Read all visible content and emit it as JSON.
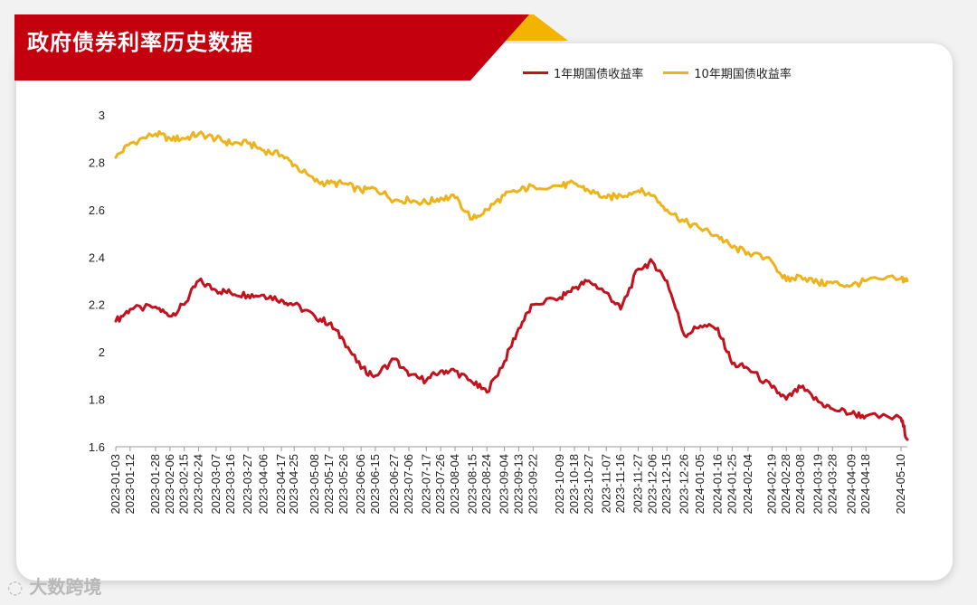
{
  "title": "政府债券利率历史数据",
  "watermark": "大数跨境",
  "colors": {
    "banner": "#c4000f",
    "accent": "#f2b400",
    "series1": "#c3121e",
    "series2": "#edb31c"
  },
  "chart_data": {
    "type": "line",
    "ylim": [
      1.6,
      3.0
    ],
    "yticks": [
      1.6,
      1.8,
      2,
      2.2,
      2.4,
      2.6,
      2.8,
      3
    ],
    "grid": false,
    "legend_position": "top",
    "x_tick_labels": [
      "2023-01-03",
      "2023-01-12",
      "2023-01-28",
      "2023-02-06",
      "2023-02-15",
      "2023-02-24",
      "2023-03-07",
      "2023-03-16",
      "2023-03-27",
      "2023-04-06",
      "2023-04-17",
      "2023-04-25",
      "2023-05-08",
      "2023-05-17",
      "2023-05-26",
      "2023-06-06",
      "2023-06-15",
      "2023-06-27",
      "2023-07-06",
      "2023-07-17",
      "2023-07-26",
      "2023-08-04",
      "2023-08-15",
      "2023-08-24",
      "2023-09-04",
      "2023-09-13",
      "2023-09-22",
      "2023-10-09",
      "2023-10-18",
      "2023-10-27",
      "2023-11-07",
      "2023-11-16",
      "2023-11-27",
      "2023-12-06",
      "2023-12-15",
      "2023-12-26",
      "2024-01-05",
      "2024-01-16",
      "2024-01-25",
      "2024-02-04",
      "2024-02-19",
      "2024-02-28",
      "2024-03-08",
      "2024-03-19",
      "2024-03-28",
      "2024-04-09",
      "2024-04-18",
      "2024-05-10"
    ],
    "series": [
      {
        "name": "1年期国债收益率",
        "x": [
          "2023-01-03",
          "2023-01-12",
          "2023-01-28",
          "2023-02-06",
          "2023-02-15",
          "2023-02-24",
          "2023-03-07",
          "2023-03-16",
          "2023-03-27",
          "2023-04-06",
          "2023-04-17",
          "2023-04-25",
          "2023-05-08",
          "2023-05-17",
          "2023-05-26",
          "2023-06-06",
          "2023-06-15",
          "2023-06-27",
          "2023-07-06",
          "2023-07-17",
          "2023-07-26",
          "2023-08-04",
          "2023-08-15",
          "2023-08-24",
          "2023-09-04",
          "2023-09-13",
          "2023-09-22",
          "2023-10-09",
          "2023-10-18",
          "2023-10-27",
          "2023-11-07",
          "2023-11-16",
          "2023-11-27",
          "2023-12-06",
          "2023-12-15",
          "2023-12-26",
          "2024-01-05",
          "2024-01-16",
          "2024-01-25",
          "2024-02-04",
          "2024-02-19",
          "2024-02-28",
          "2024-03-08",
          "2024-03-19",
          "2024-03-28",
          "2024-04-09",
          "2024-04-18",
          "2024-05-10",
          "2024-05-14"
        ],
        "values": [
          2.13,
          2.18,
          2.19,
          2.15,
          2.2,
          2.3,
          2.26,
          2.25,
          2.24,
          2.24,
          2.22,
          2.2,
          2.15,
          2.12,
          2.05,
          1.93,
          1.9,
          1.97,
          1.9,
          1.88,
          1.92,
          1.92,
          1.87,
          1.83,
          1.96,
          2.1,
          2.2,
          2.23,
          2.27,
          2.3,
          2.25,
          2.18,
          2.35,
          2.38,
          2.3,
          2.07,
          2.11,
          2.1,
          1.95,
          1.93,
          1.85,
          1.8,
          1.85,
          1.79,
          1.76,
          1.74,
          1.73,
          1.72,
          1.63
        ]
      },
      {
        "name": "10年期国债收益率",
        "x": [
          "2023-01-03",
          "2023-01-12",
          "2023-01-28",
          "2023-02-06",
          "2023-02-15",
          "2023-02-24",
          "2023-03-07",
          "2023-03-16",
          "2023-03-27",
          "2023-04-06",
          "2023-04-17",
          "2023-04-25",
          "2023-05-08",
          "2023-05-17",
          "2023-05-26",
          "2023-06-06",
          "2023-06-15",
          "2023-06-27",
          "2023-07-06",
          "2023-07-17",
          "2023-07-26",
          "2023-08-04",
          "2023-08-15",
          "2023-08-24",
          "2023-09-04",
          "2023-09-13",
          "2023-09-22",
          "2023-10-09",
          "2023-10-18",
          "2023-10-27",
          "2023-11-07",
          "2023-11-16",
          "2023-11-27",
          "2023-12-06",
          "2023-12-15",
          "2023-12-26",
          "2024-01-05",
          "2024-01-16",
          "2024-01-25",
          "2024-02-04",
          "2024-02-19",
          "2024-02-28",
          "2024-03-08",
          "2024-03-19",
          "2024-03-28",
          "2024-04-09",
          "2024-04-18",
          "2024-05-10",
          "2024-05-14"
        ],
        "values": [
          2.82,
          2.88,
          2.92,
          2.9,
          2.9,
          2.92,
          2.9,
          2.88,
          2.88,
          2.85,
          2.83,
          2.79,
          2.72,
          2.71,
          2.71,
          2.68,
          2.69,
          2.64,
          2.64,
          2.63,
          2.65,
          2.65,
          2.56,
          2.6,
          2.66,
          2.68,
          2.7,
          2.7,
          2.71,
          2.68,
          2.65,
          2.66,
          2.68,
          2.66,
          2.6,
          2.55,
          2.52,
          2.49,
          2.44,
          2.42,
          2.38,
          2.3,
          2.32,
          2.29,
          2.29,
          2.28,
          2.3,
          2.31,
          2.3
        ]
      }
    ]
  }
}
